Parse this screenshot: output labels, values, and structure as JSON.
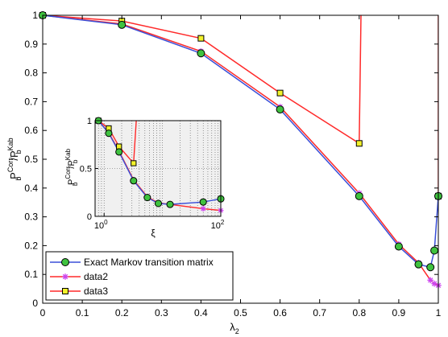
{
  "chart_data": [
    {
      "type": "line",
      "xlabel_base": "λ",
      "xlabel_sub": "2",
      "ylabel_parts": {
        "base1": "P",
        "sub1": "b",
        "sup1": "Corr",
        "slash": "/",
        "base2": "P",
        "sub2": "b",
        "sup2": "Kab"
      },
      "xlim": [
        0,
        1
      ],
      "ylim": [
        0,
        1
      ],
      "xticks": [
        "0",
        "0.1",
        "0.2",
        "0.3",
        "0.4",
        "0.5",
        "0.6",
        "0.7",
        "0.8",
        "0.9",
        "1"
      ],
      "xtick_values": [
        0,
        0.1,
        0.2,
        0.3,
        0.4,
        0.5,
        0.6,
        0.7,
        0.8,
        0.9,
        1
      ],
      "yticks": [
        "0",
        "0.1",
        "0.2",
        "0.3",
        "0.4",
        "0.5",
        "0.6",
        "0.7",
        "0.8",
        "0.9",
        "1"
      ],
      "ytick_values": [
        0,
        0.1,
        0.2,
        0.3,
        0.4,
        0.5,
        0.6,
        0.7,
        0.8,
        0.9,
        1
      ],
      "grid": false,
      "legend_position": "bottom-left",
      "series": [
        {
          "name": "Exact Markov transition matrix",
          "color": "#3a4fd8",
          "marker": "circle",
          "marker_fill": "#3fc23f",
          "x": [
            0,
            0.2,
            0.4,
            0.6,
            0.8,
            0.9,
            0.95,
            0.98,
            0.99,
            1.0
          ],
          "y": [
            1.0,
            0.967,
            0.868,
            0.673,
            0.372,
            0.197,
            0.135,
            0.125,
            0.183,
            0.372
          ]
        },
        {
          "name": "data2",
          "color": "#ff2a2a",
          "marker": "asterisk",
          "marker_fill": "#cc44ee",
          "x": [
            0,
            0.2,
            0.4,
            0.6,
            0.8,
            0.9,
            0.95,
            0.98,
            0.99,
            1.0
          ],
          "y": [
            1.0,
            0.97,
            0.875,
            0.682,
            0.382,
            0.205,
            0.14,
            0.08,
            0.068,
            0.062
          ]
        },
        {
          "name": "data3",
          "color": "#ff2a2a",
          "marker": "square",
          "marker_fill": "#f2f22a",
          "x": [
            0,
            0.2,
            0.4,
            0.6,
            0.8,
            0.805,
            1.0,
            1.0
          ],
          "y": [
            1.0,
            0.98,
            0.92,
            0.73,
            0.555,
            1.05,
            1.05,
            0.372
          ],
          "marker_mask": [
            true,
            true,
            true,
            true,
            true,
            false,
            false,
            true
          ]
        }
      ]
    },
    {
      "type": "line",
      "xlabel": "ξ",
      "ylabel_parts": {
        "base1": "P",
        "sub1": "b",
        "sup1": "Corr",
        "slash": "/",
        "base2": "P",
        "sub2": "b",
        "sup2": "Kab"
      },
      "x_scale": "log",
      "xlim": [
        0.7,
        100
      ],
      "ylim": [
        0,
        1
      ],
      "xticks": [
        {
          "base": "10",
          "exp": "0",
          "value": 1
        },
        {
          "base": "10",
          "exp": "2",
          "value": 100
        }
      ],
      "yticks": [
        "0",
        "0.5",
        "1"
      ],
      "ytick_values": [
        0,
        0.5,
        1
      ],
      "grid": true,
      "background": "#f0f0f0",
      "series": [
        {
          "name": "Exact Markov transition matrix",
          "color": "#3a4fd8",
          "marker": "circle",
          "marker_fill": "#3fc23f",
          "x": [
            0.8,
            1.2,
            1.8,
            3.2,
            5.5,
            8.5,
            13.5,
            50,
            100
          ],
          "y": [
            1.0,
            0.868,
            0.673,
            0.372,
            0.197,
            0.135,
            0.125,
            0.15,
            0.183
          ]
        },
        {
          "name": "data2",
          "color": "#ff2a2a",
          "marker": "asterisk",
          "marker_fill": "#cc44ee",
          "x": [
            0.8,
            1.2,
            1.8,
            3.2,
            5.5,
            8.5,
            13.5,
            50,
            100
          ],
          "y": [
            1.0,
            0.875,
            0.682,
            0.382,
            0.205,
            0.14,
            0.125,
            0.08,
            0.062
          ]
        },
        {
          "name": "data3",
          "color": "#ff2a2a",
          "marker": "square",
          "marker_fill": "#f2f22a",
          "x": [
            0.8,
            1.2,
            1.8,
            3.2,
            3.6
          ],
          "y": [
            1.0,
            0.92,
            0.73,
            0.555,
            1.05
          ],
          "marker_mask": [
            true,
            true,
            true,
            true,
            false
          ]
        }
      ]
    }
  ]
}
